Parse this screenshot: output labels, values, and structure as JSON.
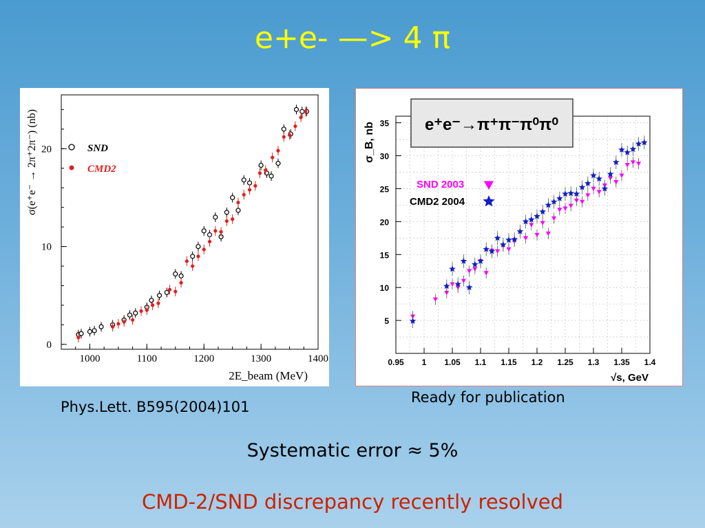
{
  "slide": {
    "title": "e+e- —> 4 π",
    "caption_left": "Phys.Lett. B595(2004)101",
    "caption_right": "Ready for publication",
    "systematic": "Systematic error ≈ 5%",
    "discrepancy": "CMD-2/SND discrepancy recently resolved"
  },
  "colors": {
    "title": "#ffff00",
    "discrepancy": "#cc2200",
    "snd_left": "#000000",
    "cmd2_left": "#e02020",
    "snd_right": "#ff00ff",
    "cmd2_right": "#1020c0"
  },
  "chart_data": [
    {
      "type": "scatter",
      "ylabel": "σ(e⁺e⁻ → 2π⁺2π⁻) (nb)",
      "xlabel": "2E_beam (MeV)",
      "xlim": [
        950,
        1400
      ],
      "ylim": [
        -0.5,
        25.5
      ],
      "xticks": [
        1000,
        1100,
        1200,
        1300,
        1400
      ],
      "yticks": [
        0,
        10,
        20
      ],
      "legend_position": "top-left",
      "series": [
        {
          "name": "SND",
          "marker": "open-circle",
          "points": [
            [
              980,
              1.0
            ],
            [
              985,
              1.1
            ],
            [
              1000,
              1.3
            ],
            [
              1008,
              1.4
            ],
            [
              1020,
              1.8
            ],
            [
              1040,
              2.0
            ],
            [
              1060,
              2.5
            ],
            [
              1070,
              3.0
            ],
            [
              1080,
              3.2
            ],
            [
              1100,
              3.8
            ],
            [
              1108,
              4.5
            ],
            [
              1122,
              5.0
            ],
            [
              1135,
              5.3
            ],
            [
              1150,
              7.2
            ],
            [
              1160,
              7.0
            ],
            [
              1180,
              9.0
            ],
            [
              1190,
              10.0
            ],
            [
              1200,
              11.6
            ],
            [
              1210,
              11.2
            ],
            [
              1220,
              13.0
            ],
            [
              1230,
              11.0
            ],
            [
              1240,
              13.5
            ],
            [
              1250,
              15.0
            ],
            [
              1260,
              13.7
            ],
            [
              1270,
              16.8
            ],
            [
              1280,
              16.5
            ],
            [
              1300,
              18.3
            ],
            [
              1310,
              17.5
            ],
            [
              1318,
              17.2
            ],
            [
              1330,
              18.5
            ],
            [
              1340,
              22.0
            ],
            [
              1352,
              21.5
            ],
            [
              1362,
              24.0
            ],
            [
              1372,
              23.8
            ],
            [
              1380,
              23.8
            ]
          ]
        },
        {
          "name": "CMD2",
          "marker": "filled-circle",
          "points": [
            [
              980,
              0.7
            ],
            [
              1040,
              1.8
            ],
            [
              1050,
              2.1
            ],
            [
              1060,
              2.3
            ],
            [
              1075,
              2.5
            ],
            [
              1090,
              3.4
            ],
            [
              1100,
              3.5
            ],
            [
              1110,
              4.0
            ],
            [
              1120,
              4.2
            ],
            [
              1140,
              5.6
            ],
            [
              1150,
              5.4
            ],
            [
              1160,
              6.3
            ],
            [
              1170,
              8.5
            ],
            [
              1180,
              8.0
            ],
            [
              1190,
              9.0
            ],
            [
              1200,
              9.7
            ],
            [
              1210,
              10.5
            ],
            [
              1220,
              11.6
            ],
            [
              1230,
              11.5
            ],
            [
              1240,
              12.6
            ],
            [
              1250,
              12.8
            ],
            [
              1260,
              14.5
            ],
            [
              1270,
              15.3
            ],
            [
              1280,
              15.8
            ],
            [
              1290,
              16.2
            ],
            [
              1298,
              17.5
            ],
            [
              1308,
              17.8
            ],
            [
              1320,
              19.1
            ],
            [
              1330,
              19.8
            ],
            [
              1340,
              21.2
            ],
            [
              1350,
              21.4
            ],
            [
              1360,
              22.3
            ],
            [
              1370,
              23.2
            ],
            [
              1378,
              23.8
            ]
          ]
        }
      ]
    },
    {
      "type": "scatter",
      "title": "e⁺e⁻→π⁺π⁻π⁰π⁰",
      "ylabel": "σ_B, nb",
      "xlabel": "√s, GeV",
      "xlim": [
        0.95,
        1.4
      ],
      "ylim": [
        0,
        36
      ],
      "xticks": [
        0.95,
        1,
        1.05,
        1.1,
        1.15,
        1.2,
        1.25,
        1.3,
        1.35,
        1.4
      ],
      "yticks": [
        5,
        10,
        15,
        20,
        25,
        30,
        35
      ],
      "grid": true,
      "legend_position": "middle-left",
      "series": [
        {
          "name": "SND 2003",
          "marker": "triangle-down",
          "points": [
            [
              0.98,
              5.6
            ],
            [
              1.02,
              8.2
            ],
            [
              1.04,
              9.2
            ],
            [
              1.05,
              10.5
            ],
            [
              1.06,
              10.0
            ],
            [
              1.07,
              11.0
            ],
            [
              1.08,
              12.5
            ],
            [
              1.09,
              12.8
            ],
            [
              1.1,
              14.0
            ],
            [
              1.11,
              12.2
            ],
            [
              1.12,
              15.6
            ],
            [
              1.13,
              15.5
            ],
            [
              1.14,
              16.3
            ],
            [
              1.15,
              15.8
            ],
            [
              1.16,
              17.0
            ],
            [
              1.18,
              17.5
            ],
            [
              1.19,
              19.5
            ],
            [
              1.2,
              18.0
            ],
            [
              1.21,
              19.8
            ],
            [
              1.22,
              18.2
            ],
            [
              1.23,
              20.5
            ],
            [
              1.24,
              21.8
            ],
            [
              1.25,
              22.0
            ],
            [
              1.26,
              22.4
            ],
            [
              1.27,
              23.2
            ],
            [
              1.28,
              23.0
            ],
            [
              1.29,
              24.0
            ],
            [
              1.3,
              25.0
            ],
            [
              1.31,
              24.5
            ],
            [
              1.32,
              25.5
            ],
            [
              1.33,
              26.6
            ],
            [
              1.34,
              26.0
            ],
            [
              1.35,
              27.0
            ],
            [
              1.36,
              28.6
            ],
            [
              1.37,
              29.0
            ],
            [
              1.38,
              28.8
            ]
          ]
        },
        {
          "name": "CMD2 2004",
          "marker": "star",
          "points": [
            [
              0.98,
              4.9
            ],
            [
              1.04,
              10.2
            ],
            [
              1.05,
              12.8
            ],
            [
              1.06,
              10.5
            ],
            [
              1.07,
              14.0
            ],
            [
              1.08,
              10.0
            ],
            [
              1.09,
              13.5
            ],
            [
              1.1,
              14.0
            ],
            [
              1.11,
              15.8
            ],
            [
              1.12,
              15.5
            ],
            [
              1.13,
              17.5
            ],
            [
              1.14,
              16.5
            ],
            [
              1.15,
              17.2
            ],
            [
              1.16,
              17.3
            ],
            [
              1.17,
              18.5
            ],
            [
              1.18,
              20.0
            ],
            [
              1.19,
              20.3
            ],
            [
              1.2,
              20.8
            ],
            [
              1.21,
              21.5
            ],
            [
              1.22,
              22.5
            ],
            [
              1.23,
              23.0
            ],
            [
              1.24,
              23.5
            ],
            [
              1.25,
              24.2
            ],
            [
              1.26,
              24.3
            ],
            [
              1.27,
              24.2
            ],
            [
              1.28,
              25.2
            ],
            [
              1.29,
              25.8
            ],
            [
              1.3,
              27.0
            ],
            [
              1.31,
              26.5
            ],
            [
              1.32,
              25.0
            ],
            [
              1.33,
              27.2
            ],
            [
              1.34,
              29.0
            ],
            [
              1.35,
              30.9
            ],
            [
              1.36,
              30.5
            ],
            [
              1.37,
              31.0
            ],
            [
              1.38,
              31.8
            ],
            [
              1.39,
              32.0
            ]
          ]
        }
      ]
    }
  ]
}
